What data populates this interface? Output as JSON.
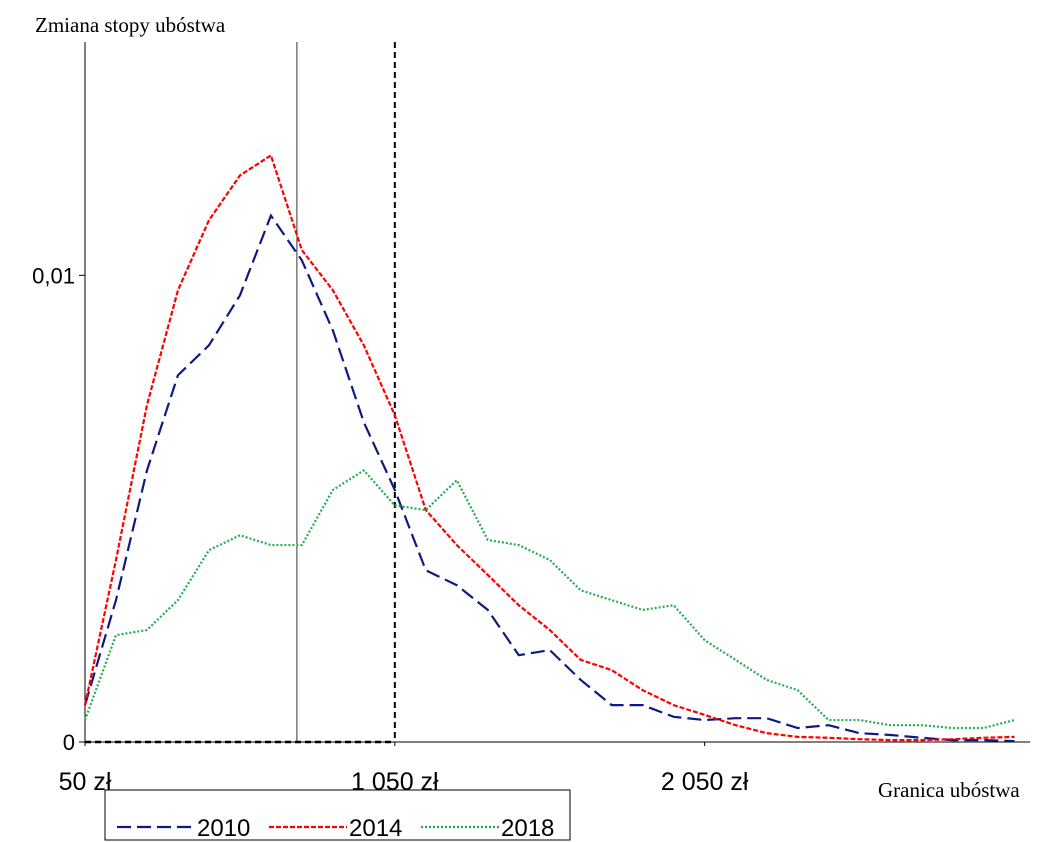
{
  "chart_data": {
    "type": "line",
    "y_label": "Zmiana stopy ubóstwa",
    "x_label": "Granica ubóstwa",
    "x": [
      50,
      150,
      250,
      350,
      450,
      550,
      650,
      750,
      850,
      950,
      1050,
      1150,
      1250,
      1350,
      1450,
      1550,
      1650,
      1750,
      1850,
      1950,
      2050,
      2150,
      2250,
      2350,
      2450,
      2550,
      2650,
      2750,
      2850,
      2950,
      3050
    ],
    "series": [
      {
        "name": "2010",
        "color": "#0d1a80",
        "dash": "14 6",
        "values": [
          0.00079,
          0.00304,
          0.00582,
          0.00786,
          0.0085,
          0.00957,
          0.01128,
          0.01032,
          0.00882,
          0.00685,
          0.0054,
          0.00368,
          0.00336,
          0.00283,
          0.00186,
          0.00197,
          0.00133,
          0.00079,
          0.00079,
          0.00054,
          0.00047,
          0.00051,
          0.00051,
          0.0003,
          0.00036,
          0.00019,
          0.00015,
          9e-05,
          4e-05,
          4e-05,
          2e-05
        ]
      },
      {
        "name": "2014",
        "color": "#ff0000",
        "dash": "5 2",
        "values": [
          0.00079,
          0.0039,
          0.00722,
          0.00968,
          0.01118,
          0.01214,
          0.01257,
          0.01054,
          0.00968,
          0.0085,
          0.007,
          0.00497,
          0.00422,
          0.00358,
          0.00293,
          0.0024,
          0.00176,
          0.00154,
          0.00111,
          0.00079,
          0.00058,
          0.00036,
          0.00019,
          0.00011,
          9e-05,
          6e-05,
          4e-05,
          4e-05,
          6e-05,
          9e-05,
          0.00011
        ]
      },
      {
        "name": "2018",
        "color": "#1fae4c",
        "dash": "2 2",
        "values": [
          0.00047,
          0.00229,
          0.0024,
          0.00304,
          0.00411,
          0.00443,
          0.00422,
          0.00422,
          0.0054,
          0.00582,
          0.00507,
          0.00497,
          0.00561,
          0.00433,
          0.00422,
          0.0039,
          0.00325,
          0.00304,
          0.00283,
          0.00293,
          0.00218,
          0.00176,
          0.00133,
          0.00111,
          0.00047,
          0.00047,
          0.00036,
          0.00036,
          0.0003,
          0.0003,
          0.00047
        ]
      }
    ],
    "xlim": [
      50,
      3100
    ],
    "ylim": [
      0,
      0.015
    ],
    "xticks": [
      {
        "value": 50,
        "label": "50 zł"
      },
      {
        "value": 1050,
        "label": "1 050 zł"
      },
      {
        "value": 2050,
        "label": "2 050 zł"
      }
    ],
    "yticks": [
      0,
      {
        "value": 0.01,
        "label": "0,01"
      }
    ],
    "vlines": [
      {
        "value": 734,
        "dash": "none"
      },
      {
        "value": 1050,
        "dash": "6 4"
      }
    ],
    "legend": "bottom"
  }
}
